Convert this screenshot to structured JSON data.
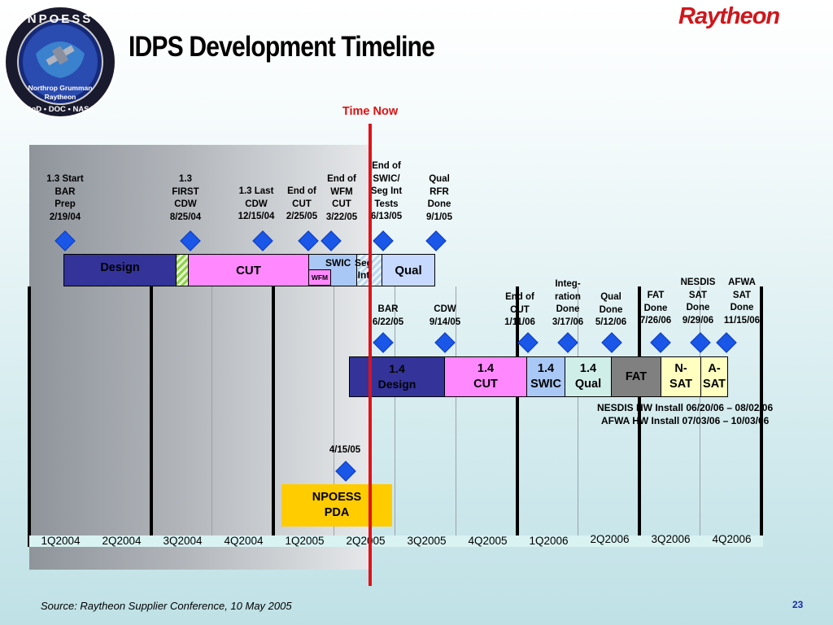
{
  "title": "IDPS Development Timeline",
  "brand": "Raytheon",
  "logo": {
    "top_text": "NPOESS",
    "line1": "Northrop Grumman",
    "line2": "Raytheon",
    "bottom_text": "DoD • DOC • NASA"
  },
  "time_now": "Time Now",
  "quarters": [
    "1Q2004",
    "2Q2004",
    "3Q2004",
    "4Q2004",
    "1Q2005",
    "2Q2005",
    "3Q2005",
    "4Q2005",
    "1Q2006",
    "2Q2006",
    "3Q2006",
    "4Q2006"
  ],
  "release13": {
    "milestones": [
      {
        "label": "1.3 Start\nBAR\nPrep\n2/19/04"
      },
      {
        "label": "1.3\nFIRST\nCDW\n8/25/04"
      },
      {
        "label": "1.3 Last\nCDW\n12/15/04"
      },
      {
        "label": "End of\nCUT\n2/25/05"
      },
      {
        "label": "End of\nWFM\nCUT\n3/22/05"
      },
      {
        "label": "End of\nSWIC/\nSeg Int\nTests\n6/13/05"
      },
      {
        "label": "Qual\nRFR\nDone\n9/1/05"
      }
    ],
    "phases": {
      "design": "Design",
      "cut": "CUT",
      "wfm": "WFM",
      "swic": "SWIC",
      "seg_int": "Seg\nInt",
      "qual": "Qual"
    }
  },
  "release14": {
    "milestones": [
      {
        "label": "BAR\n6/22/05"
      },
      {
        "label": "CDW\n9/14/05"
      },
      {
        "label": "End of\nCUT\n1/11/06"
      },
      {
        "label": "Integ-\nration\nDone\n3/17/06"
      },
      {
        "label": "Qual\nDone\n5/12/06"
      },
      {
        "label": "FAT\nDone\n7/26/06"
      },
      {
        "label": "NESDIS\nSAT\nDone\n9/29/06"
      },
      {
        "label": "AFWA\nSAT\nDone\n11/15/06"
      }
    ],
    "phases": {
      "design": "1.4\nDesign",
      "cut": "1.4\nCUT",
      "swic": "1.4\nSWIC",
      "qual": "1.4\nQual",
      "fat": "FAT",
      "nsat": "N-\nSAT",
      "asat": "A-\nSAT"
    },
    "notes": [
      "NESDIS HW Install 06/20/06 – 08/02/06",
      "AFWA HW Install 07/03/06 – 10/03/06"
    ]
  },
  "pda": {
    "date": "4/15/05",
    "label": "NPOESS\nPDA"
  },
  "footer": {
    "source": "Source:  Raytheon Supplier Conference, 10 May 2005",
    "page": "23"
  },
  "colors": {
    "design": "#33339a",
    "cut": "#ff88ff",
    "swic": "#a9c8f5",
    "qual": "#c7d9ff",
    "qual14": "#cfeee8",
    "fat": "#808080",
    "nsat": "#ffffc0",
    "asat": "#ffffc0",
    "pda": "#ffcc00",
    "time_now": "#e0121a",
    "brand": "#d0161b"
  }
}
